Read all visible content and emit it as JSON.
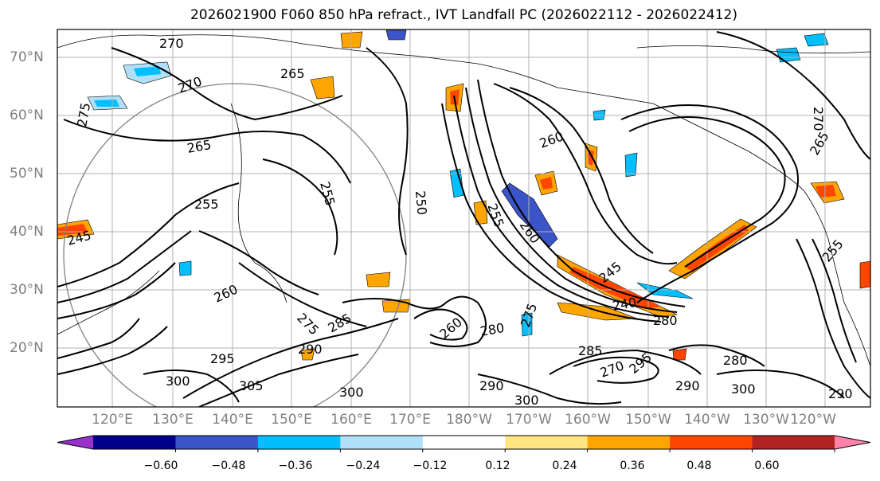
{
  "title": "2026021900 F060 850 hPa refract., IVT Landfall PC (2026022112 - 2026022412)",
  "lat_labels": [
    "70°N",
    "60°N",
    "50°N",
    "40°N",
    "30°N",
    "20°N"
  ],
  "lon_labels": [
    "120°E",
    "130°E",
    "140°E",
    "150°E",
    "160°E",
    "170°E",
    "180°W",
    "170°W",
    "160°W",
    "150°W",
    "140°W",
    "130°W",
    "120°W"
  ],
  "contour_labels": [
    "270",
    "270",
    "265",
    "275",
    "265",
    "255",
    "255",
    "245",
    "260",
    "275",
    "285",
    "290",
    "295",
    "300",
    "305",
    "300",
    "290",
    "300",
    "275",
    "280",
    "260",
    "250",
    "255",
    "260",
    "245",
    "240",
    "280",
    "285",
    "270",
    "295",
    "290",
    "300",
    "280",
    "265",
    "270",
    "255",
    "260",
    "290"
  ],
  "colorbar": {
    "ticks": [
      "−0.60",
      "−0.48",
      "−0.36",
      "−0.24",
      "−0.12",
      "0.12",
      "0.24",
      "0.36",
      "0.48",
      "0.60"
    ],
    "colors": [
      "#9932cc",
      "#00008b",
      "#3b55c8",
      "#00bfff",
      "#b0e0f8",
      "#ffffff",
      "#ffe680",
      "#ffa500",
      "#ff4500",
      "#b22222",
      "#ff82ab"
    ]
  }
}
